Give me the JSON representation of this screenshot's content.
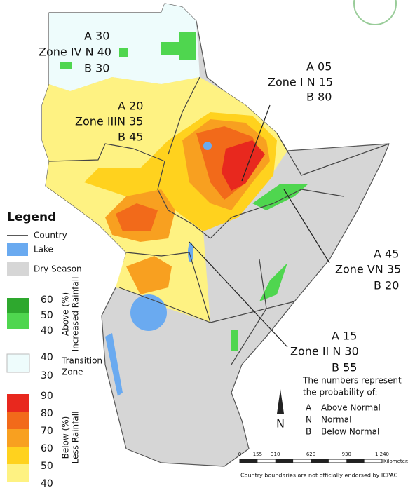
{
  "legend": {
    "title": "Legend",
    "items": [
      "Country",
      "Lake",
      "Dry Season"
    ],
    "above": {
      "label": "Above (%)",
      "sublabel": "Increased Rainfall",
      "ticks": [
        60,
        50,
        40
      ]
    },
    "transition": {
      "label": "Transition",
      "sublabel": "Zone",
      "ticks": [
        40,
        30
      ]
    },
    "below": {
      "label": "Below (%)",
      "sublabel": "Less Rainfall",
      "ticks": [
        90,
        80,
        70,
        60,
        50,
        40
      ]
    }
  },
  "zones": [
    {
      "lines": [
        "A 30",
        "Zone IV N 40",
        "B 30"
      ]
    },
    {
      "lines": [
        "A 20",
        "Zone IIIN 35",
        "B 45"
      ]
    },
    {
      "lines": [
        "A 05",
        "Zone I N 15",
        "B 80"
      ]
    },
    {
      "lines": [
        "A 45",
        "Zone VN 35",
        "B 20"
      ]
    },
    {
      "lines": [
        "A 15",
        "Zone II N 30",
        "B 55"
      ]
    }
  ],
  "note": {
    "title": "The numbers represent",
    "subtitle": "the probability of:",
    "items": [
      {
        "key": "A",
        "label": "Above Normal"
      },
      {
        "key": "N",
        "label": "Normal"
      },
      {
        "key": "B",
        "label": "Below Normal"
      }
    ]
  },
  "scale": {
    "ticks": [
      0,
      155,
      310,
      620,
      930,
      "1,240"
    ],
    "unit": "Kilometers"
  },
  "north": "N",
  "disclaimer": "Country boundaries are not officially endorsed by ICPAC"
}
